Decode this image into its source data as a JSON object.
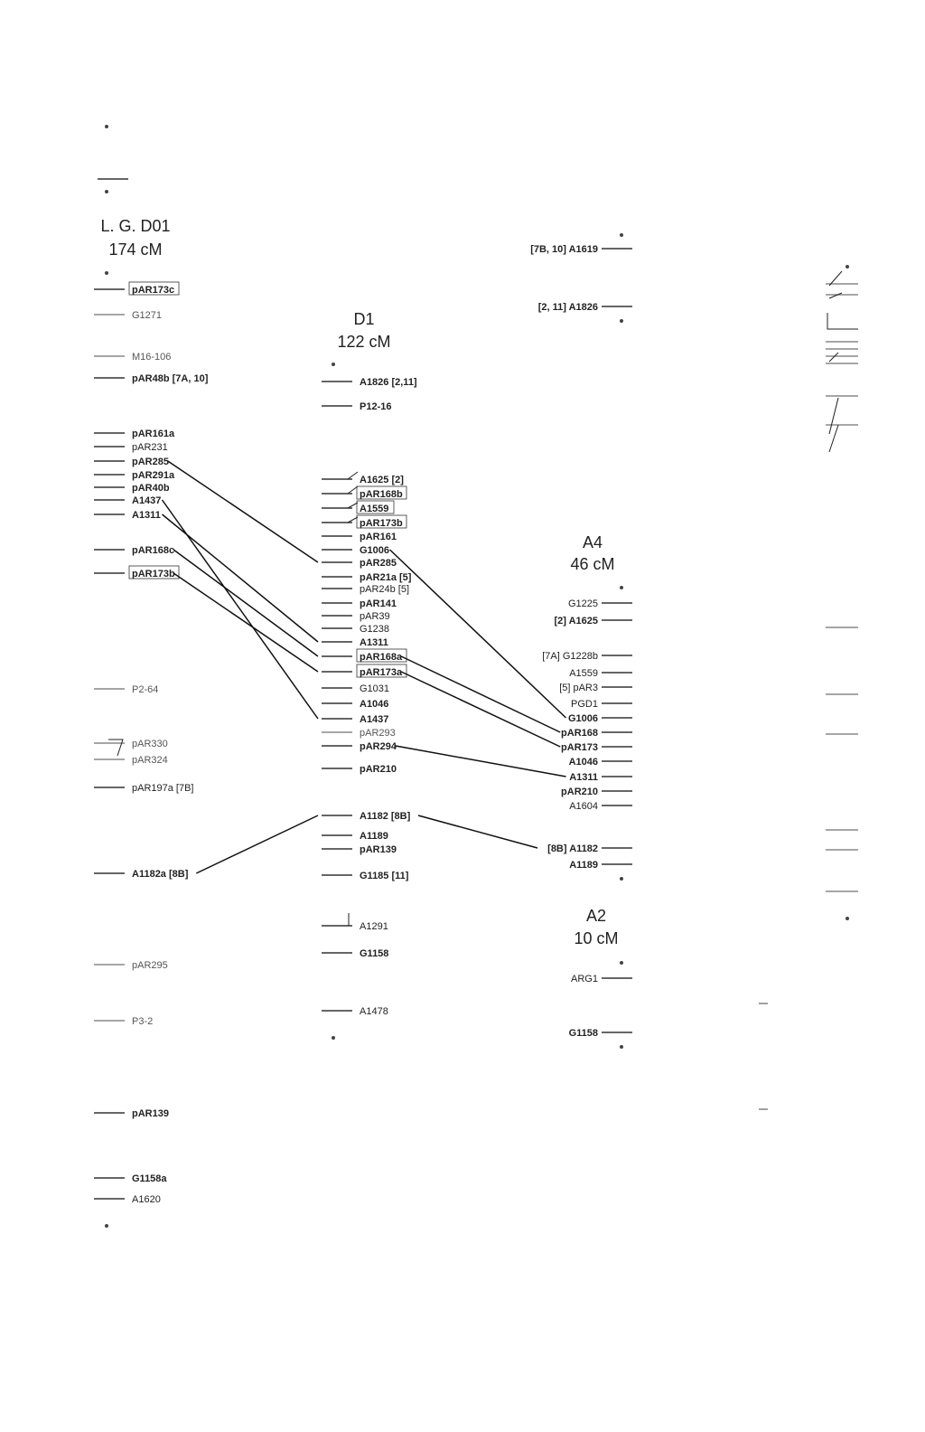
{
  "groups": [
    {
      "id": "D01",
      "title": "L. G. D01",
      "length": "174 cM",
      "markers": [
        {
          "label": "pAR173c",
          "bold": true,
          "boxed": true
        },
        {
          "label": "G1271",
          "light": true
        },
        {
          "label": "M16-106",
          "light": true
        },
        {
          "label": "pAR48b",
          "note": "[7A, 10]",
          "bold": true
        },
        {
          "label": "pAR161a",
          "bold": true
        },
        {
          "label": "pAR231"
        },
        {
          "label": "pAR285",
          "bold": true
        },
        {
          "label": "pAR291a",
          "bold": true
        },
        {
          "label": "pAR40b",
          "bold": true
        },
        {
          "label": "A1437",
          "bold": true
        },
        {
          "label": "A1311",
          "bold": true
        },
        {
          "label": "pAR168c",
          "bold": true
        },
        {
          "label": "pAR173b",
          "bold": true,
          "boxed": true
        },
        {
          "label": "P2-64",
          "light": true
        },
        {
          "label": "pAR330",
          "light": true
        },
        {
          "label": "pAR324",
          "light": true
        },
        {
          "label": "pAR197a",
          "note": "[7B]"
        },
        {
          "label": "A1182a",
          "note": "[8B]",
          "bold": true
        },
        {
          "label": "pAR295",
          "light": true
        },
        {
          "label": "P3-2",
          "light": true
        },
        {
          "label": "pAR139",
          "bold": true
        },
        {
          "label": "G1158a",
          "bold": true
        },
        {
          "label": "A1620"
        }
      ]
    },
    {
      "id": "D1",
      "title": "D1",
      "length": "122 cM",
      "markers": [
        {
          "label": "A1826",
          "note": "[2,11]",
          "bold": true
        },
        {
          "label": "P12-16",
          "bold": true
        },
        {
          "label": "A1625",
          "note": "[2]",
          "bold": true
        },
        {
          "label": "pAR168b",
          "bold": true,
          "boxed": true
        },
        {
          "label": "A1559",
          "bold": true,
          "boxed": true
        },
        {
          "label": "pAR173b",
          "bold": true,
          "boxed": true
        },
        {
          "label": "pAR161",
          "bold": true
        },
        {
          "label": "G1006",
          "bold": true
        },
        {
          "label": "pAR285",
          "bold": true
        },
        {
          "label": "pAR21a",
          "note": "[5]",
          "bold": true
        },
        {
          "label": "pAR24b",
          "note": "[5]"
        },
        {
          "label": "pAR141",
          "bold": true
        },
        {
          "label": "pAR39"
        },
        {
          "label": "G1238"
        },
        {
          "label": "A1311",
          "bold": true
        },
        {
          "label": "pAR168a",
          "bold": true,
          "boxed": true
        },
        {
          "label": "pAR173a",
          "bold": true,
          "boxed": true
        },
        {
          "label": "G1031"
        },
        {
          "label": "A1046",
          "bold": true
        },
        {
          "label": "A1437",
          "bold": true
        },
        {
          "label": "pAR293",
          "light": true
        },
        {
          "label": "pAR294",
          "bold": true
        },
        {
          "label": "pAR210",
          "bold": true
        },
        {
          "label": "A1182",
          "note": "[8B]",
          "bold": true
        },
        {
          "label": "A1189",
          "bold": true
        },
        {
          "label": "pAR139",
          "bold": true
        },
        {
          "label": "G1185",
          "note": "[11]",
          "bold": true
        },
        {
          "label": "A1291"
        },
        {
          "label": "G1158",
          "bold": true
        },
        {
          "label": "A1478"
        }
      ]
    },
    {
      "id": "A-top",
      "title": "",
      "length": "",
      "markers": [
        {
          "label": "A1619",
          "note": "[7B, 10]",
          "bold": true
        },
        {
          "label": "A1826",
          "note": "[2, 11]",
          "bold": true
        }
      ]
    },
    {
      "id": "A4",
      "title": "A4",
      "length": "46 cM",
      "markers": [
        {
          "label": "G1225"
        },
        {
          "label": "A1625",
          "note": "[2]",
          "bold": true
        },
        {
          "label": "G1228b",
          "note": "[7A]"
        },
        {
          "label": "A1559"
        },
        {
          "label": "pAR3",
          "note": "[5]"
        },
        {
          "label": "PGD1"
        },
        {
          "label": "G1006",
          "bold": true
        },
        {
          "label": "pAR168",
          "bold": true
        },
        {
          "label": "pAR173",
          "bold": true
        },
        {
          "label": "A1046",
          "bold": true
        },
        {
          "label": "A1311",
          "bold": true
        },
        {
          "label": "pAR210",
          "bold": true
        },
        {
          "label": "A1604"
        },
        {
          "label": "A1182",
          "note": "[8B]",
          "bold": true
        },
        {
          "label": "A1189",
          "bold": true
        }
      ]
    },
    {
      "id": "A2",
      "title": "A2",
      "length": "10 cM",
      "markers": [
        {
          "label": "ARG1"
        },
        {
          "label": "G1158",
          "bold": true
        }
      ]
    }
  ]
}
